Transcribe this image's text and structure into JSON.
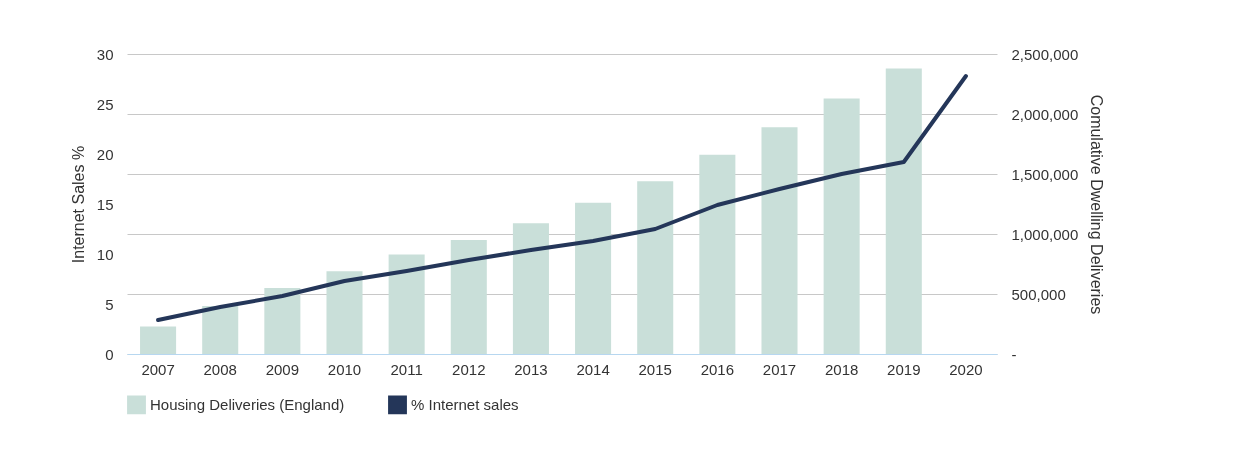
{
  "chart_data": {
    "type": "bar",
    "categories": [
      "2007",
      "2008",
      "2009",
      "2010",
      "2011",
      "2012",
      "2013",
      "2014",
      "2015",
      "2016",
      "2017",
      "2018",
      "2019",
      "2020"
    ],
    "series": [
      {
        "name": "Housing Deliveries (England)",
        "type": "bar",
        "axis": "y2",
        "color": "#c9dfd9",
        "values": [
          230000,
          400000,
          550000,
          690000,
          830000,
          950000,
          1090000,
          1260000,
          1440000,
          1660000,
          1890000,
          2130000,
          2380000,
          null
        ]
      },
      {
        "name": "% Internet sales",
        "type": "line",
        "color": "#243659",
        "values": [
          3.4,
          4.7,
          5.8,
          7.3,
          8.3,
          9.4,
          10.4,
          11.3,
          12.5,
          14.9,
          16.5,
          18.0,
          19.2,
          27.8
        ]
      }
    ],
    "ylabel": "Internet Sales %",
    "y2label": "Comulative Dwelling Deliveries",
    "ylim": [
      0,
      30
    ],
    "yticks": [
      0,
      5,
      10,
      15,
      20,
      25,
      30
    ],
    "y2lim": [
      0,
      2500000
    ],
    "y2ticks": [
      {
        "value": 0,
        "label": "-"
      },
      {
        "value": 500000,
        "label": "500,000"
      },
      {
        "value": 1000000,
        "label": "1,000,000"
      },
      {
        "value": 1500000,
        "label": "1,500,000"
      },
      {
        "value": 2000000,
        "label": "2,000,000"
      },
      {
        "value": 2500000,
        "label": "2,500,000"
      }
    ],
    "grid": "y2",
    "legend": "bottom"
  }
}
